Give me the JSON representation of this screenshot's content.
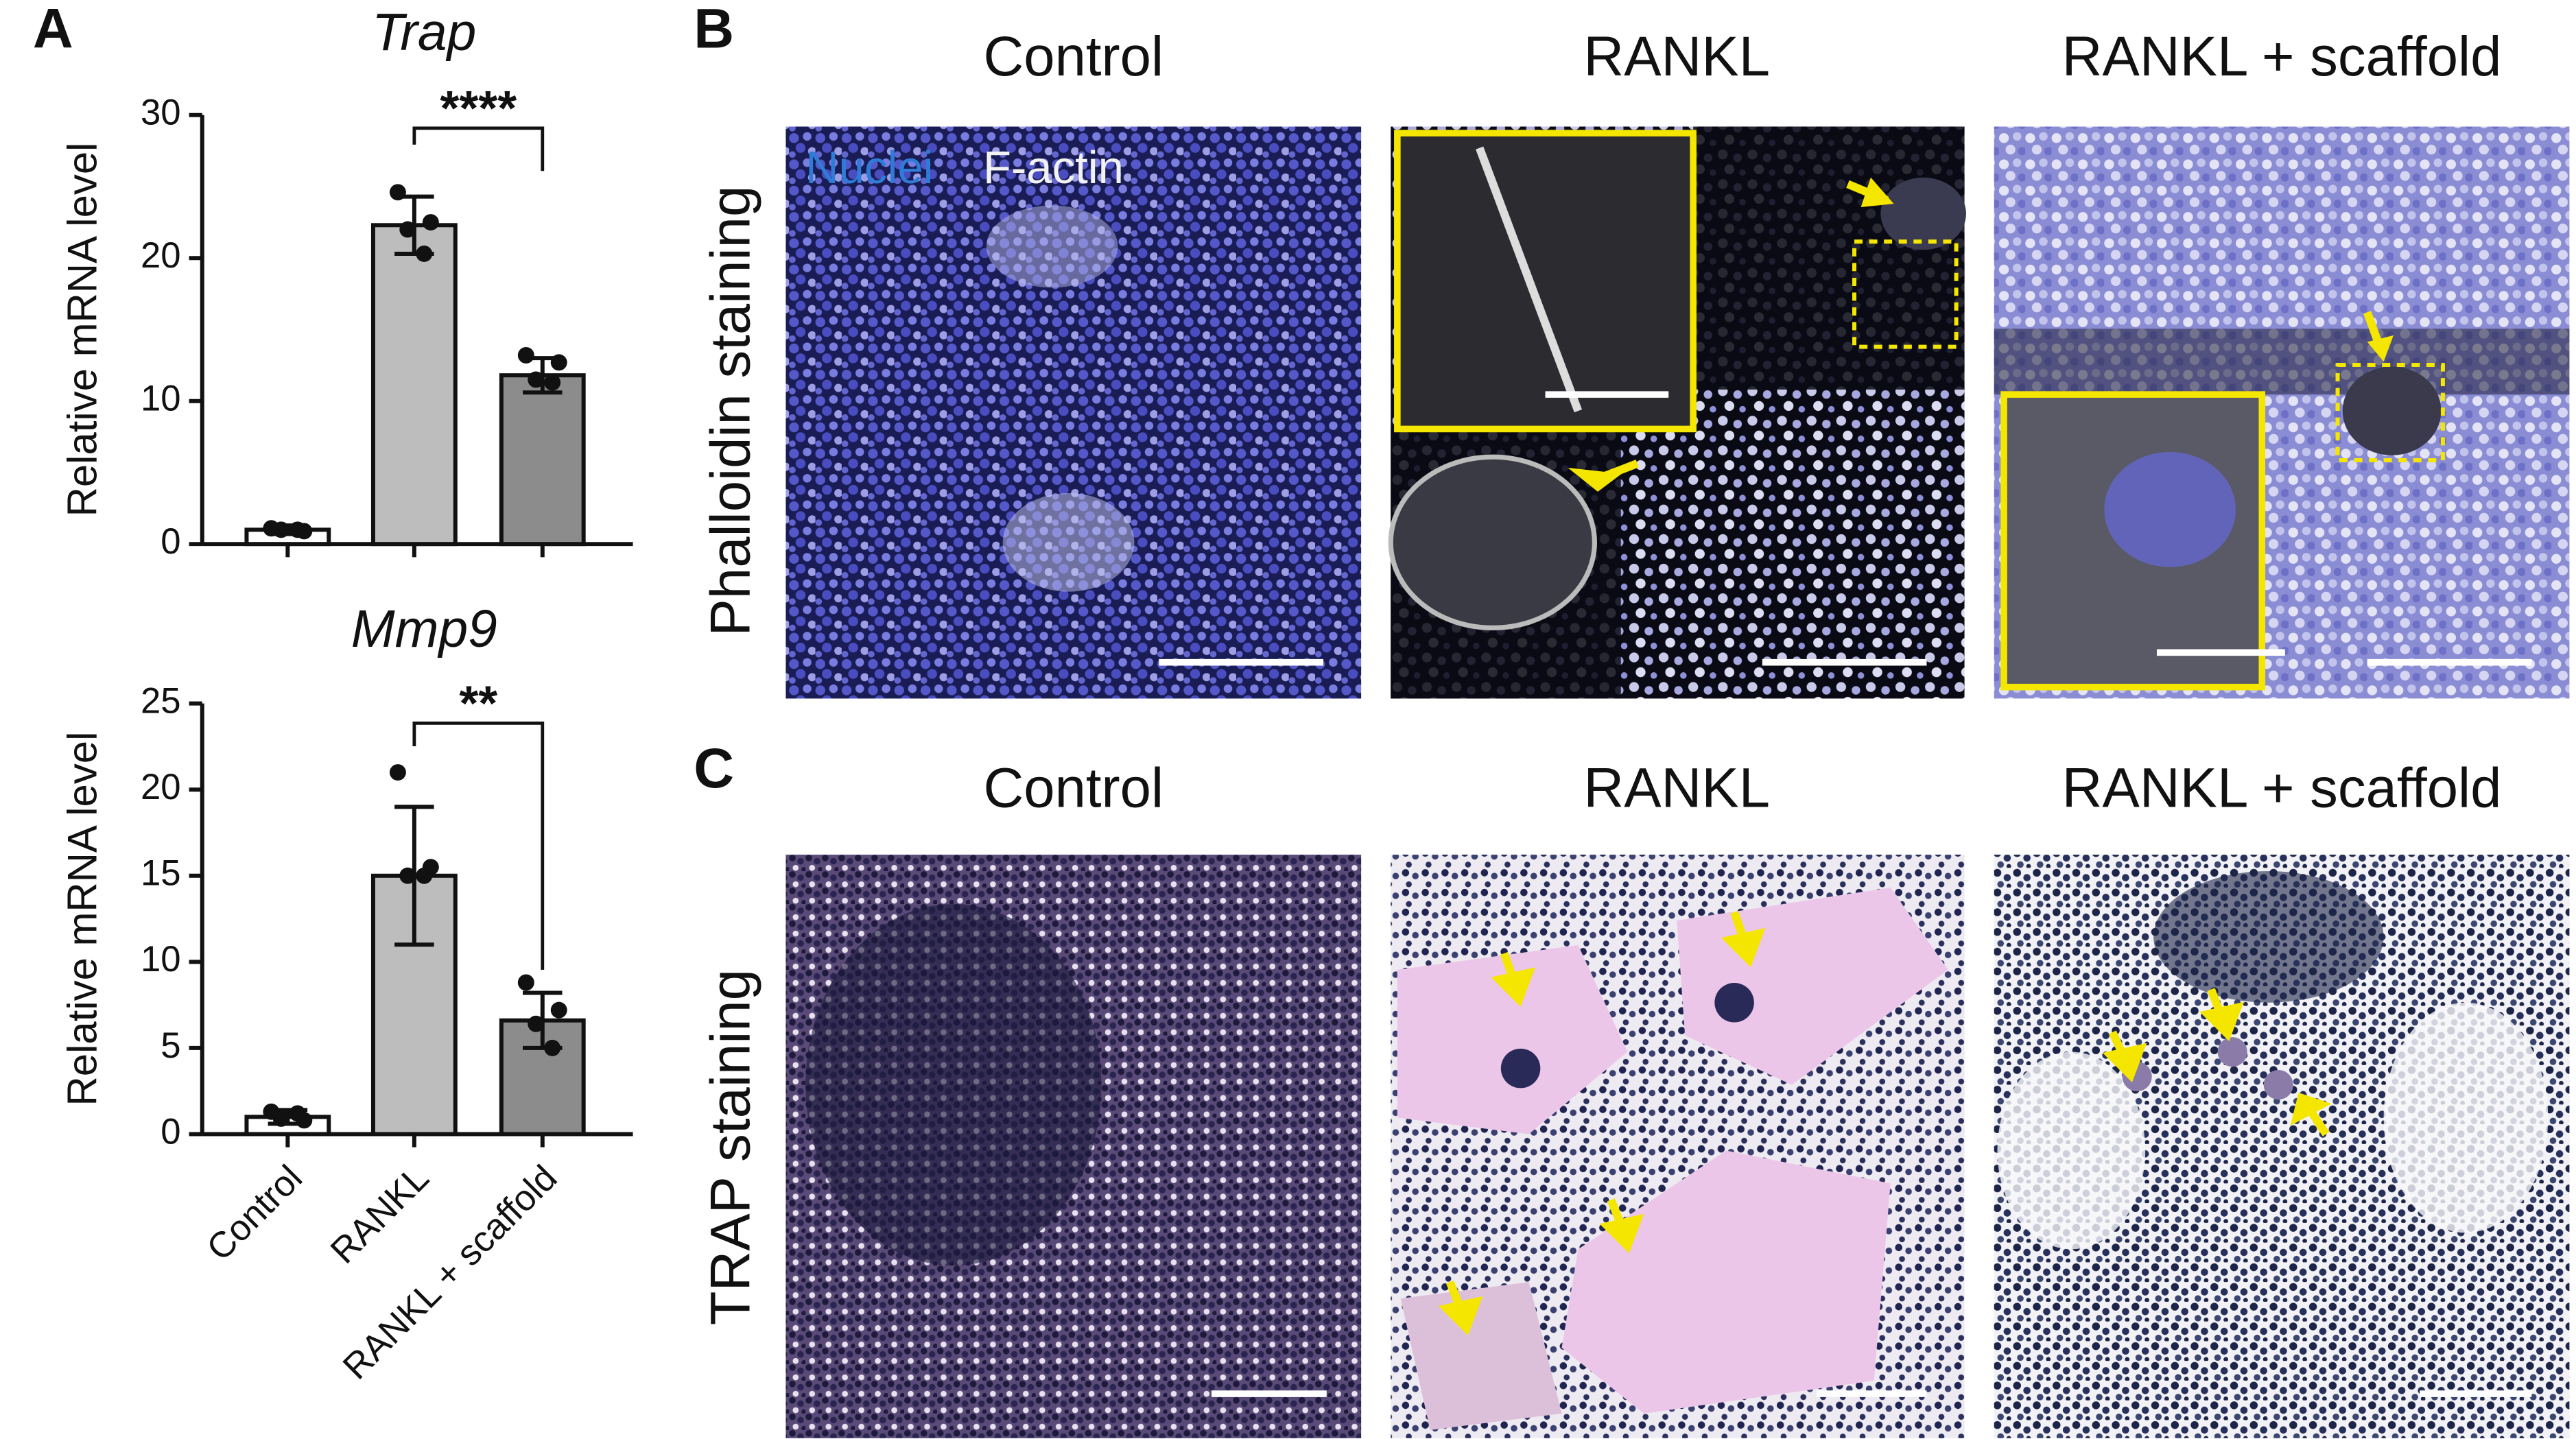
{
  "chart_data": [
    {
      "type": "bar",
      "title": "Trap",
      "ylabel": "Relative mRNA level",
      "categories": [
        null,
        null,
        null
      ],
      "values": [
        1.0,
        22.3,
        11.8
      ],
      "errors": [
        0.3,
        2.0,
        1.2
      ],
      "points": [
        [
          1.1,
          0.9,
          1.0,
          1.0
        ],
        [
          24.6,
          22.5,
          22.0,
          20.3
        ],
        [
          13.2,
          12.7,
          11.5,
          11.3
        ]
      ],
      "colors": [
        "#ffffff",
        "#bdbdbd",
        "#8c8c8c"
      ],
      "ylim": [
        0,
        30
      ],
      "yticks": [
        0,
        10,
        20,
        30
      ],
      "significance": "****"
    },
    {
      "type": "bar",
      "title": "Mmp9",
      "ylabel": "Relative mRNA level",
      "categories": [
        "Control",
        "RANKL",
        "RANKL + scaffold"
      ],
      "values": [
        1.0,
        15.0,
        6.6
      ],
      "errors": [
        0.4,
        4.0,
        1.6
      ],
      "points": [
        [
          1.3,
          0.8,
          0.9,
          1.2
        ],
        [
          21.0,
          15.5,
          15.0,
          15.0
        ],
        [
          8.8,
          7.2,
          6.4,
          5.0
        ]
      ],
      "colors": [
        "#ffffff",
        "#bdbdbd",
        "#8c8c8c"
      ],
      "ylim": [
        0,
        25
      ],
      "yticks": [
        0,
        5,
        10,
        15,
        20,
        25
      ],
      "significance": "**"
    }
  ],
  "figure": {
    "panel_labels": [
      "A",
      "B",
      "C"
    ],
    "columns": [
      "Control",
      "RANKL",
      "RANKL + scaffold"
    ],
    "columns_c": [
      "Control",
      "RANKL",
      "RANKL + scaffold"
    ],
    "rows": [
      "Phalloidin staining",
      "TRAP staining"
    ],
    "legend": [
      "Nuclei",
      "F-actin"
    ]
  }
}
